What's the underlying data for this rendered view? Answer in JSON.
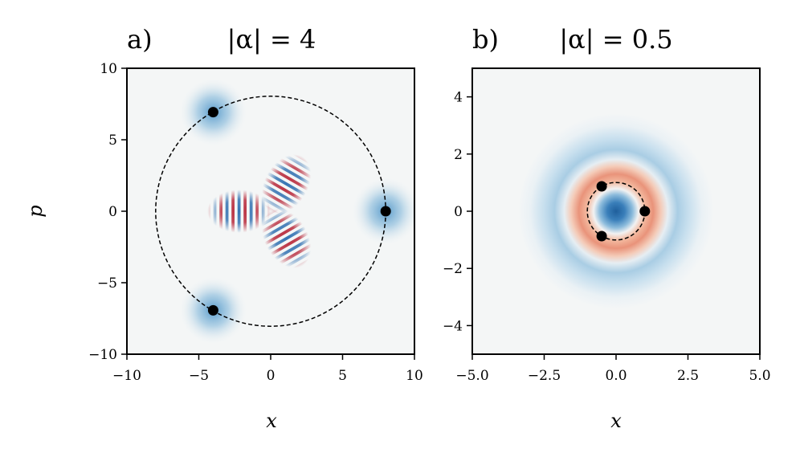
{
  "chart_data": [
    {
      "type": "heatmap",
      "panel_label": "a)",
      "title": "|α| = 4",
      "xlabel": "x",
      "ylabel": "p",
      "xlim": [
        -10,
        10
      ],
      "ylim": [
        -10,
        10
      ],
      "xticks": [
        -10,
        -5,
        0,
        5,
        10
      ],
      "yticks": [
        -10,
        -5,
        0,
        5,
        10
      ],
      "xtick_labels": [
        "−10",
        "−5",
        "0",
        "5",
        "10"
      ],
      "ytick_labels": [
        "−10",
        "−5",
        "0",
        "5",
        "10"
      ],
      "colormap": "RdBu_r",
      "circle": {
        "center": [
          0,
          0
        ],
        "radius": 8
      },
      "points": [
        {
          "x": 8,
          "y": 0
        },
        {
          "x": -4,
          "y": 6.93
        },
        {
          "x": -4,
          "y": -6.93
        }
      ]
    },
    {
      "type": "heatmap",
      "panel_label": "b)",
      "title": "|α| = 0.5",
      "xlabel": "x",
      "ylabel": "",
      "xlim": [
        -5,
        5
      ],
      "ylim": [
        -5,
        5
      ],
      "xticks": [
        -5,
        -2.5,
        0,
        2.5,
        5
      ],
      "yticks": [
        -4,
        -2,
        0,
        2,
        4
      ],
      "xtick_labels": [
        "−5.0",
        "−2.5",
        "0.0",
        "2.5",
        "5.0"
      ],
      "ytick_labels": [
        "−4",
        "−2",
        "0",
        "2",
        "4"
      ],
      "colormap": "RdBu_r",
      "circle": {
        "center": [
          0,
          0
        ],
        "radius": 1
      },
      "points": [
        {
          "x": 1,
          "y": 0
        },
        {
          "x": -0.5,
          "y": 0.87
        },
        {
          "x": -0.5,
          "y": -0.87
        }
      ]
    }
  ],
  "colors": {
    "background": "#f4f6f6",
    "positive": "#b2182b",
    "negative": "#2166ac",
    "curve": "#000000"
  }
}
